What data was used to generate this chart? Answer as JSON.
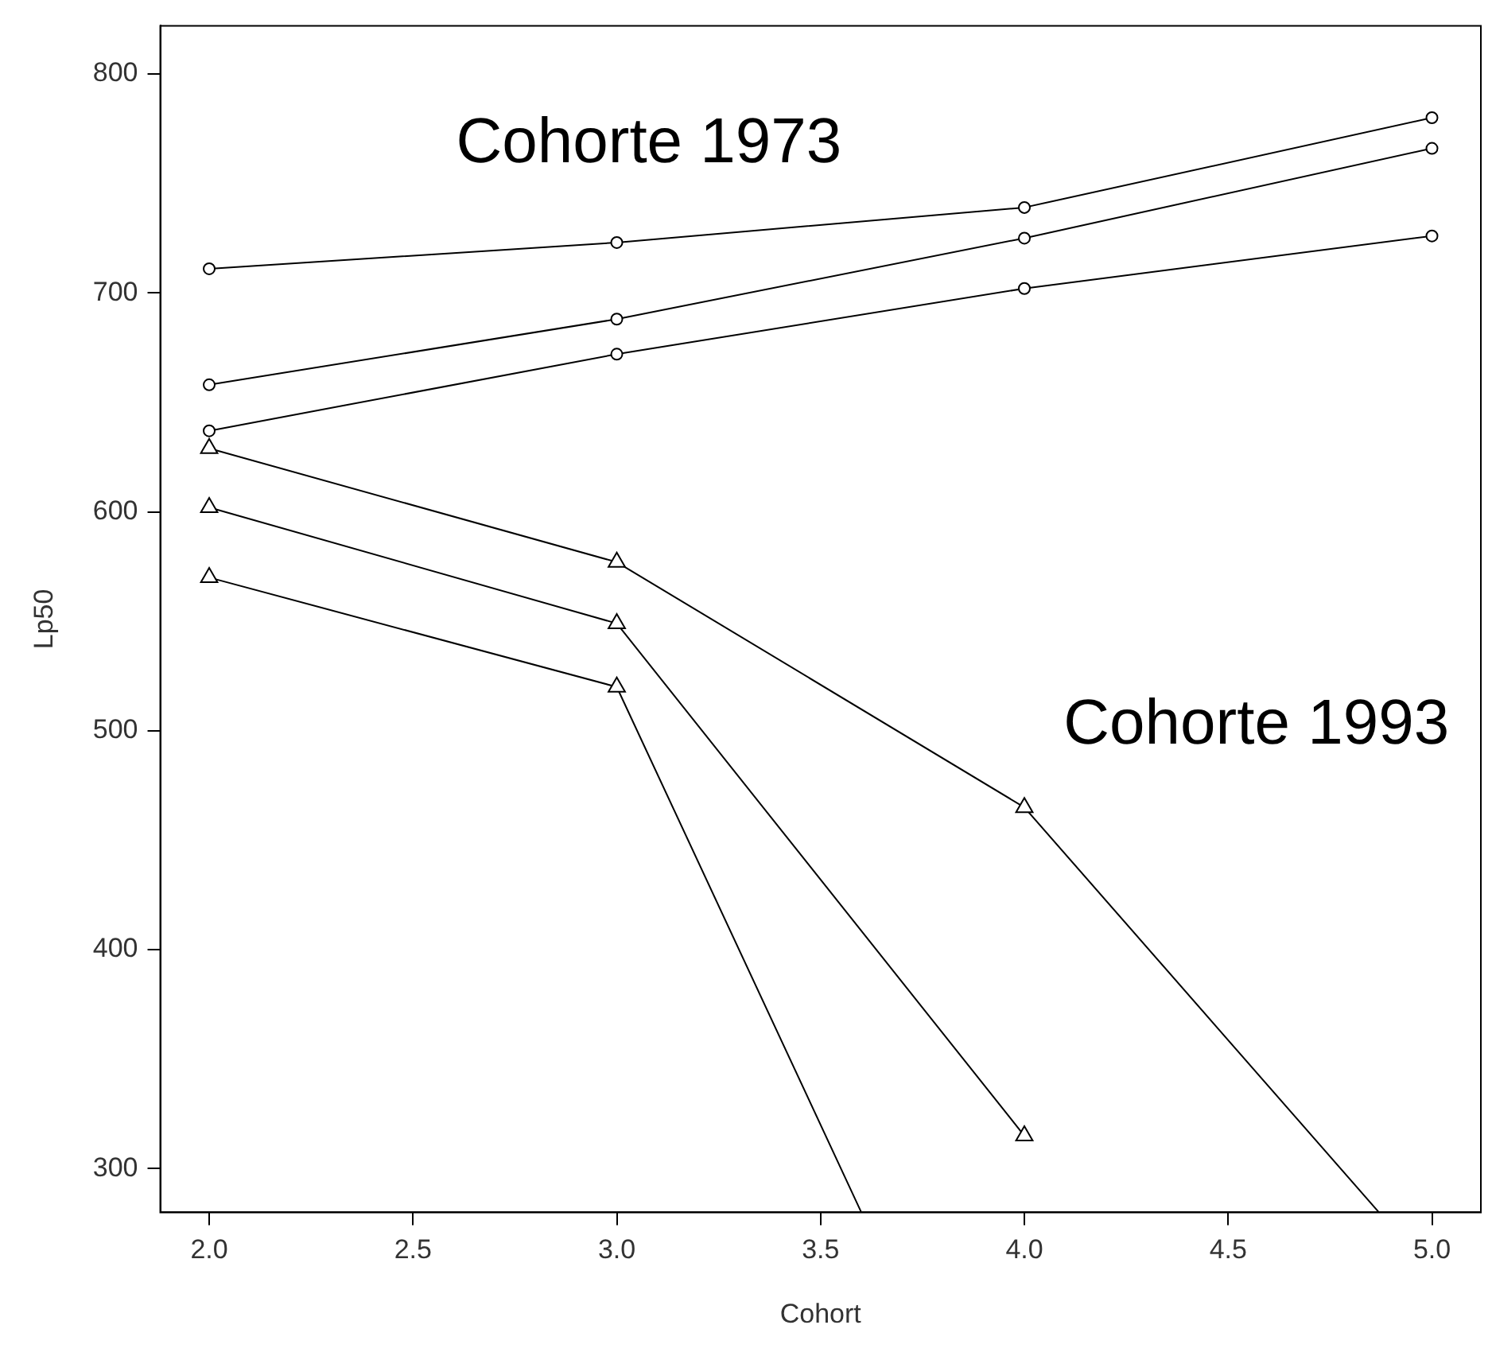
{
  "chart_data": {
    "type": "line",
    "xlabel": "Cohort",
    "ylabel": "Lp50",
    "x": [
      2,
      3,
      4,
      5
    ],
    "xlim": [
      1.88,
      5.12
    ],
    "xticks": [
      {
        "value": 2,
        "label": "2.0"
      },
      {
        "value": 2.5,
        "label": "2.5"
      },
      {
        "value": 3,
        "label": "3.0"
      },
      {
        "value": 3.5,
        "label": "3.5"
      },
      {
        "value": 4,
        "label": "4.0"
      },
      {
        "value": 4.5,
        "label": "4.5"
      },
      {
        "value": 5,
        "label": "5.0"
      }
    ],
    "ylim": [
      280,
      822
    ],
    "yticks": [
      300,
      400,
      500,
      600,
      700,
      800
    ],
    "grid": false,
    "legend": false,
    "line_style": "solid",
    "series": [
      {
        "color": "#000000",
        "marker": "circle",
        "values": [
          711,
          723,
          739,
          780
        ]
      },
      {
        "color": "#000000",
        "marker": "circle",
        "values": [
          658,
          688,
          725,
          766
        ]
      },
      {
        "color": "#000000",
        "marker": "circle",
        "values": [
          637,
          672,
          702,
          726
        ]
      },
      {
        "color": "#000000",
        "marker": "triangle",
        "x": [
          2,
          3,
          4,
          4.87
        ],
        "values": [
          629,
          577,
          465,
          280
        ]
      },
      {
        "color": "#000000",
        "marker": "triangle",
        "values": [
          602,
          549,
          315,
          null
        ]
      },
      {
        "color": "#000000",
        "marker": "triangle",
        "x": [
          2,
          3,
          3.6
        ],
        "values": [
          570,
          520,
          280
        ]
      }
    ],
    "annotations": [
      "Cohorte 1973",
      "Cohorte 1993"
    ]
  }
}
